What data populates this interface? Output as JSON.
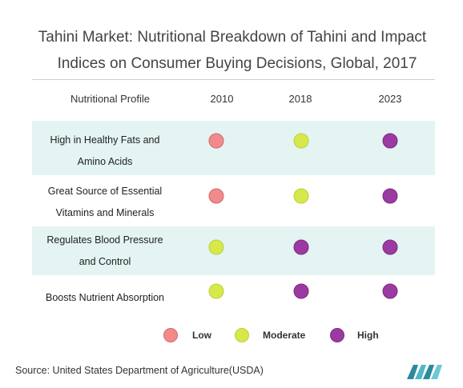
{
  "title": {
    "line1": "Tahini Market: Nutritional Breakdown of Tahini and Impact",
    "line2": "Indices on Consumer Buying Decisions, Global, 2017"
  },
  "chart_data": {
    "type": "table",
    "header": "Nutritional Profile",
    "columns": [
      "2010",
      "2018",
      "2023"
    ],
    "rows": [
      {
        "label_lines": [
          "High in Healthy Fats and",
          "Amino Acids"
        ],
        "values": [
          "Low",
          "Moderate",
          "High"
        ]
      },
      {
        "label_lines": [
          "Great Source of Essential",
          "Vitamins and Minerals"
        ],
        "values": [
          "Low",
          "Moderate",
          "High"
        ]
      },
      {
        "label_lines": [
          "Regulates Blood Pressure",
          "and Control"
        ],
        "values": [
          "Moderate",
          "High",
          "High"
        ]
      },
      {
        "label_lines": [
          "Boosts Nutrient Absorption"
        ],
        "values": [
          "Moderate",
          "High",
          "High"
        ]
      }
    ],
    "legend": [
      "Low",
      "Moderate",
      "High"
    ],
    "levels": {
      "Low": {
        "fill": "#f2898a",
        "stroke": "#d06a6b"
      },
      "Moderate": {
        "fill": "#d6e84a",
        "stroke": "#bdd037"
      },
      "High": {
        "fill": "#9b3aa0",
        "stroke": "#7f2886"
      }
    },
    "row_stripe_color": "#e3f4f3"
  },
  "source": "Source: United States Department of Agriculture(USDA)"
}
